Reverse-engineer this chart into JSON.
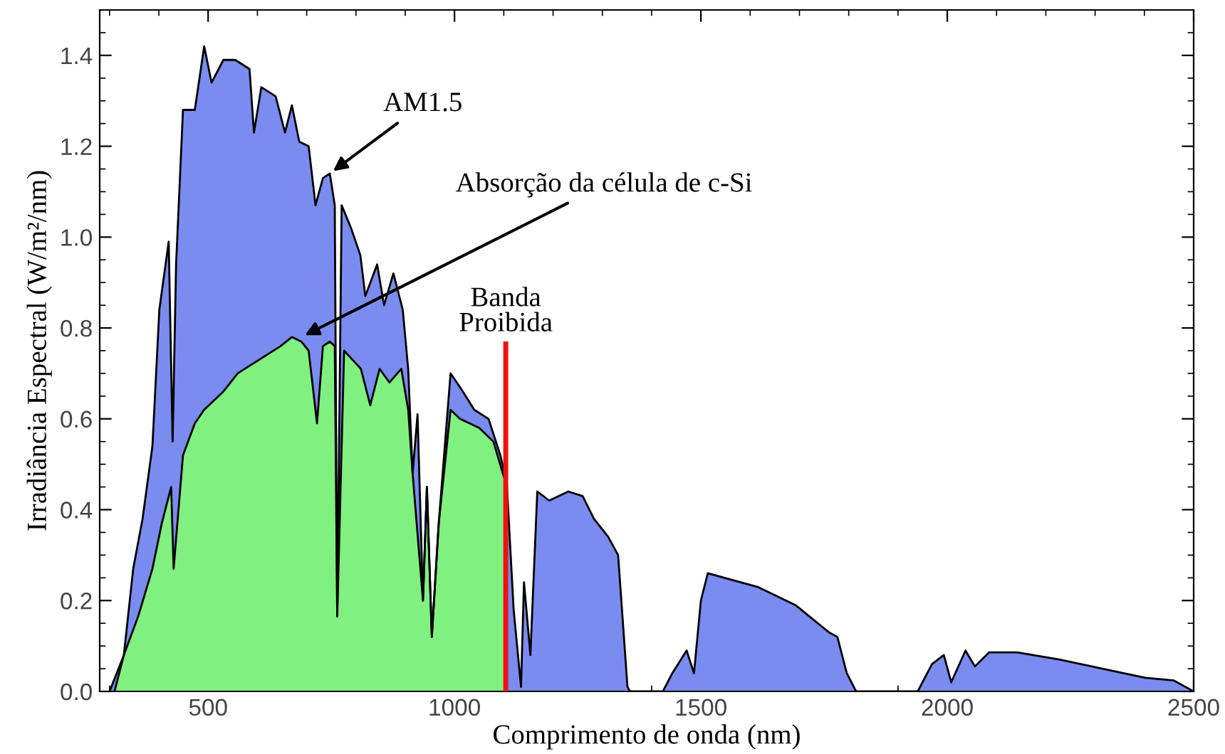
{
  "chart_data": {
    "type": "area",
    "xlabel": "Comprimento de onda (nm)",
    "ylabel": "Irradiância Espectral (W/m²/nm)",
    "xlim": [
      280,
      2500
    ],
    "ylim": [
      0,
      1.5
    ],
    "xticks": [
      500,
      1000,
      1500,
      2000,
      2500
    ],
    "yticks": [
      {
        "value": 0,
        "label": "0.0"
      },
      {
        "value": 0.2,
        "label": "0.2"
      },
      {
        "value": 0.4,
        "label": "0.4"
      },
      {
        "value": 0.6,
        "label": "0.6"
      },
      {
        "value": 0.8,
        "label": "0.8"
      },
      {
        "value": 1.0,
        "label": "1.0"
      },
      {
        "value": 1.2,
        "label": "1.2"
      },
      {
        "value": 1.4,
        "label": "1.4"
      }
    ],
    "grid": false,
    "series": [
      {
        "color": "#7b8cf0",
        "x": [
          300,
          329,
          348,
          367,
          387,
          401,
          420,
          428,
          435,
          449,
          473,
          492,
          507,
          531,
          555,
          584,
          593,
          608,
          637,
          656,
          670,
          685,
          704,
          718,
          733,
          747,
          757,
          762,
          771,
          790,
          809,
          819,
          843,
          857,
          876,
          895,
          906,
          915,
          925,
          936,
          944,
          954,
          968,
          992,
          1011,
          1040,
          1069,
          1093,
          1106,
          1120,
          1135,
          1141,
          1154,
          1168,
          1192,
          1231,
          1260,
          1283,
          1312,
          1332,
          1351,
          1356,
          1423,
          1442,
          1471,
          1486,
          1500,
          1514,
          1548,
          1615,
          1692,
          1760,
          1777,
          1796,
          1815,
          1940,
          1969,
          1993,
          2008,
          2037,
          2056,
          2085,
          2142,
          2229,
          2315,
          2402,
          2460,
          2500
        ],
        "values": [
          0,
          0.08,
          0.27,
          0.38,
          0.54,
          0.84,
          0.99,
          0.55,
          0.94,
          1.28,
          1.28,
          1.42,
          1.34,
          1.39,
          1.39,
          1.37,
          1.23,
          1.33,
          1.31,
          1.23,
          1.29,
          1.21,
          1.2,
          1.07,
          1.13,
          1.14,
          1.07,
          0.165,
          1.07,
          1.02,
          0.96,
          0.87,
          0.94,
          0.85,
          0.92,
          0.84,
          0.71,
          0.48,
          0.61,
          0.2,
          0.45,
          0.12,
          0.37,
          0.7,
          0.67,
          0.62,
          0.6,
          0.52,
          0.46,
          0.18,
          0.01,
          0.24,
          0.08,
          0.44,
          0.42,
          0.44,
          0.43,
          0.38,
          0.34,
          0.3,
          0.01,
          0,
          0,
          0.04,
          0.09,
          0.04,
          0.2,
          0.26,
          0.25,
          0.23,
          0.19,
          0.13,
          0.12,
          0.04,
          0,
          0,
          0.06,
          0.08,
          0.02,
          0.09,
          0.055,
          0.086,
          0.086,
          0.07,
          0.05,
          0.03,
          0.024,
          0
        ]
      },
      {
        "color": "#80f080",
        "x": [
          310,
          329,
          358,
          387,
          406,
          425,
          430,
          449,
          473,
          492,
          531,
          560,
          589,
          618,
          647,
          670,
          689,
          704,
          721,
          733,
          747,
          757,
          762,
          776,
          810,
          829,
          848,
          868,
          892,
          906,
          915,
          936,
          944,
          954,
          968,
          992,
          1011,
          1050,
          1079,
          1098,
          1104,
          1104
        ],
        "values": [
          0,
          0.08,
          0.165,
          0.27,
          0.37,
          0.45,
          0.27,
          0.52,
          0.59,
          0.62,
          0.66,
          0.7,
          0.72,
          0.74,
          0.76,
          0.78,
          0.77,
          0.75,
          0.59,
          0.76,
          0.77,
          0.76,
          0.165,
          0.75,
          0.71,
          0.63,
          0.71,
          0.68,
          0.71,
          0.62,
          0.48,
          0.2,
          0.45,
          0.12,
          0.37,
          0.62,
          0.6,
          0.58,
          0.55,
          0.48,
          0.46,
          0
        ]
      }
    ],
    "ref_lines": [
      {
        "axis": "x",
        "value": 1104,
        "label": "Banda\nProibida",
        "color": "#ee1111"
      }
    ],
    "annotations": [
      {
        "text": "AM1.5",
        "x": 747,
        "y": 1.14
      },
      {
        "text": "Absorção da célula de c-Si",
        "x": 689,
        "y": 0.78
      }
    ]
  }
}
